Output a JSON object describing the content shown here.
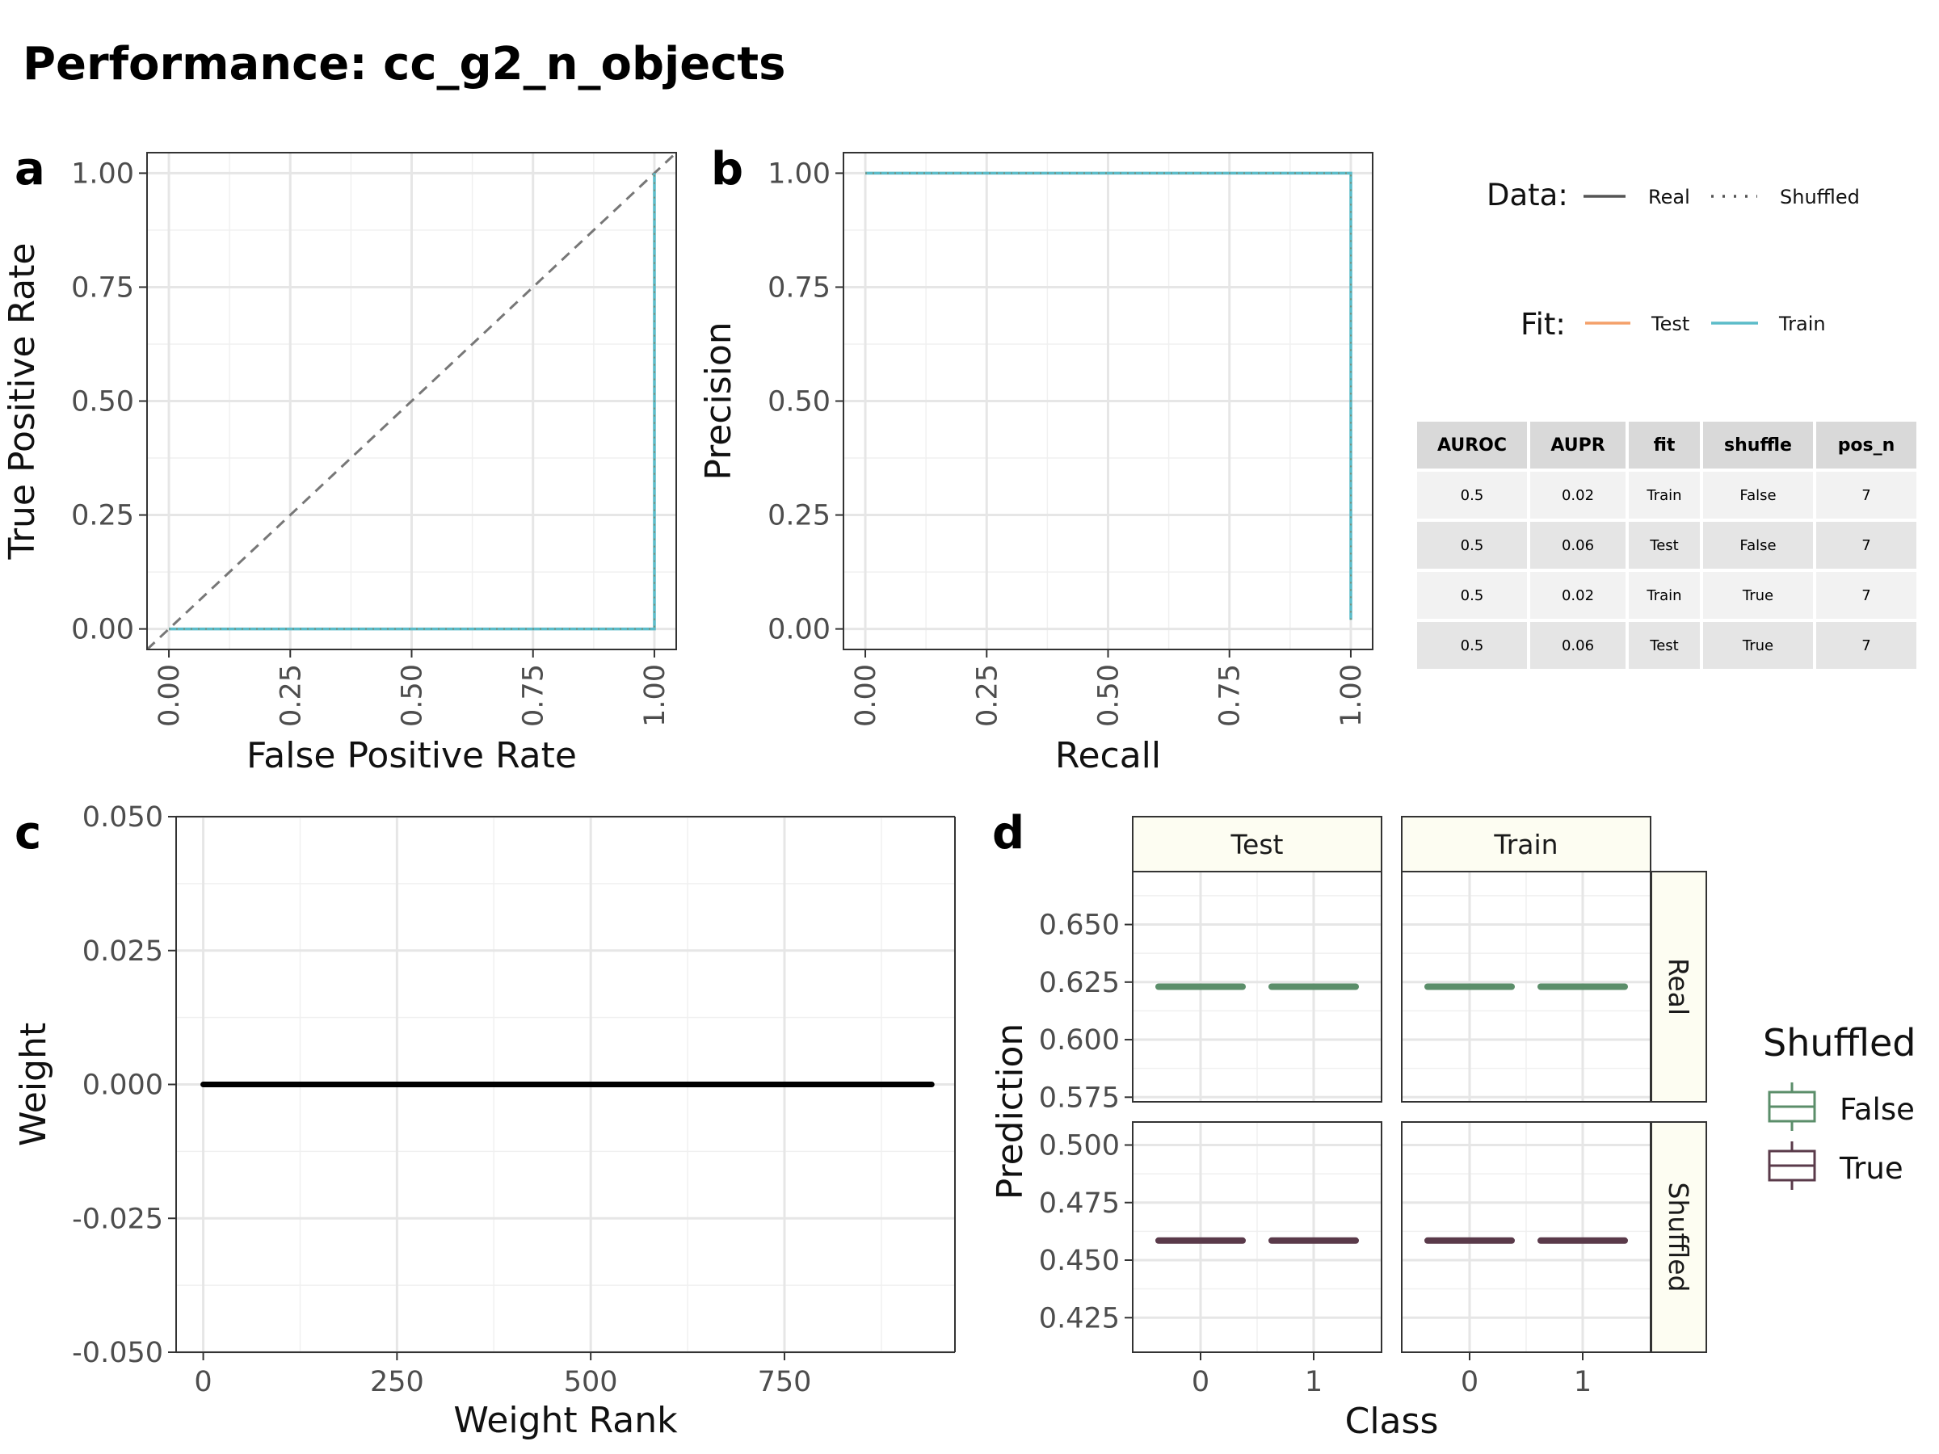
{
  "title": "Performance: cc_g2_n_objects",
  "legend": {
    "data_title": "Data:",
    "data_items": [
      "Real",
      "Shuffled"
    ],
    "fit_title": "Fit:",
    "fit_items": [
      "Test",
      "Train"
    ],
    "shuffled_title": "Shuffled",
    "shuffled_items": [
      "False",
      "True"
    ]
  },
  "colors": {
    "test": "#f4a06a",
    "train": "#5bbcc9",
    "shuffled_false": "#5b8e6a",
    "shuffled_true": "#5a3a4a",
    "strip_fill": "#fdfdf2"
  },
  "table": {
    "columns": [
      "AUROC",
      "AUPR",
      "fit",
      "shuffle",
      "pos_n"
    ],
    "rows": [
      [
        "0.5",
        "0.02",
        "Train",
        "False",
        "7"
      ],
      [
        "0.5",
        "0.06",
        "Test",
        "False",
        "7"
      ],
      [
        "0.5",
        "0.02",
        "Train",
        "True",
        "7"
      ],
      [
        "0.5",
        "0.06",
        "Test",
        "True",
        "7"
      ]
    ]
  },
  "chart_data": [
    {
      "panel": "a",
      "type": "line",
      "xlabel": "False Positive Rate",
      "ylabel": "True Positive Rate",
      "xlim": [
        0,
        1
      ],
      "ylim": [
        0,
        1
      ],
      "xticks": [
        "0.00",
        "0.25",
        "0.50",
        "0.75",
        "1.00"
      ],
      "yticks": [
        "0.00",
        "0.25",
        "0.50",
        "0.75",
        "1.00"
      ],
      "grid": true,
      "reference_line": "diagonal dashed",
      "series": [
        {
          "name": "Train",
          "linetype": "Real",
          "x": [
            0,
            1,
            1
          ],
          "y": [
            0,
            0,
            1
          ]
        },
        {
          "name": "Train",
          "linetype": "Shuffled",
          "x": [
            0,
            1,
            1
          ],
          "y": [
            0,
            0,
            1
          ]
        }
      ]
    },
    {
      "panel": "b",
      "type": "line",
      "xlabel": "Recall",
      "ylabel": "Precision",
      "xlim": [
        0,
        1
      ],
      "ylim": [
        0,
        1
      ],
      "xticks": [
        "0.00",
        "0.25",
        "0.50",
        "0.75",
        "1.00"
      ],
      "yticks": [
        "0.00",
        "0.25",
        "0.50",
        "0.75",
        "1.00"
      ],
      "grid": true,
      "series": [
        {
          "name": "Train",
          "linetype": "Real",
          "x": [
            0,
            1,
            1
          ],
          "y": [
            1,
            1,
            0.02
          ]
        },
        {
          "name": "Train",
          "linetype": "Shuffled",
          "x": [
            0,
            1,
            1
          ],
          "y": [
            1,
            1,
            0.02
          ]
        }
      ]
    },
    {
      "panel": "c",
      "type": "scatter",
      "xlabel": "Weight Rank",
      "ylabel": "Weight",
      "xlim": [
        -35,
        970
      ],
      "ylim": [
        -0.05,
        0.05
      ],
      "xticks": [
        "0",
        "250",
        "500",
        "750"
      ],
      "yticks": [
        "-0.050",
        "-0.025",
        "0.000",
        "0.025",
        "0.050"
      ],
      "grid": true,
      "x": [
        0,
        940
      ],
      "y": [
        0,
        0
      ]
    },
    {
      "panel": "d",
      "type": "box",
      "xlabel": "Class",
      "ylabel": "Prediction",
      "legend_position": "right",
      "col_facets": [
        "Test",
        "Train"
      ],
      "row_facets": [
        "Real",
        "Shuffled"
      ],
      "categories": [
        "0",
        "1"
      ],
      "rows": [
        {
          "facet": "Real",
          "ylim": [
            0.573,
            0.673
          ],
          "yticks": [
            "0.575",
            "0.600",
            "0.625",
            "0.650"
          ],
          "series": [
            {
              "name": "False",
              "values": {
                "Test": [
                  0.623,
                  0.623
                ],
                "Train": [
                  0.623,
                  0.623
                ]
              }
            }
          ]
        },
        {
          "facet": "Shuffled",
          "ylim": [
            0.41,
            0.51
          ],
          "yticks": [
            "0.425",
            "0.450",
            "0.475",
            "0.500"
          ],
          "series": [
            {
              "name": "True",
              "values": {
                "Test": [
                  0.4585,
                  0.4585
                ],
                "Train": [
                  0.4585,
                  0.4585
                ]
              }
            }
          ]
        }
      ]
    }
  ]
}
